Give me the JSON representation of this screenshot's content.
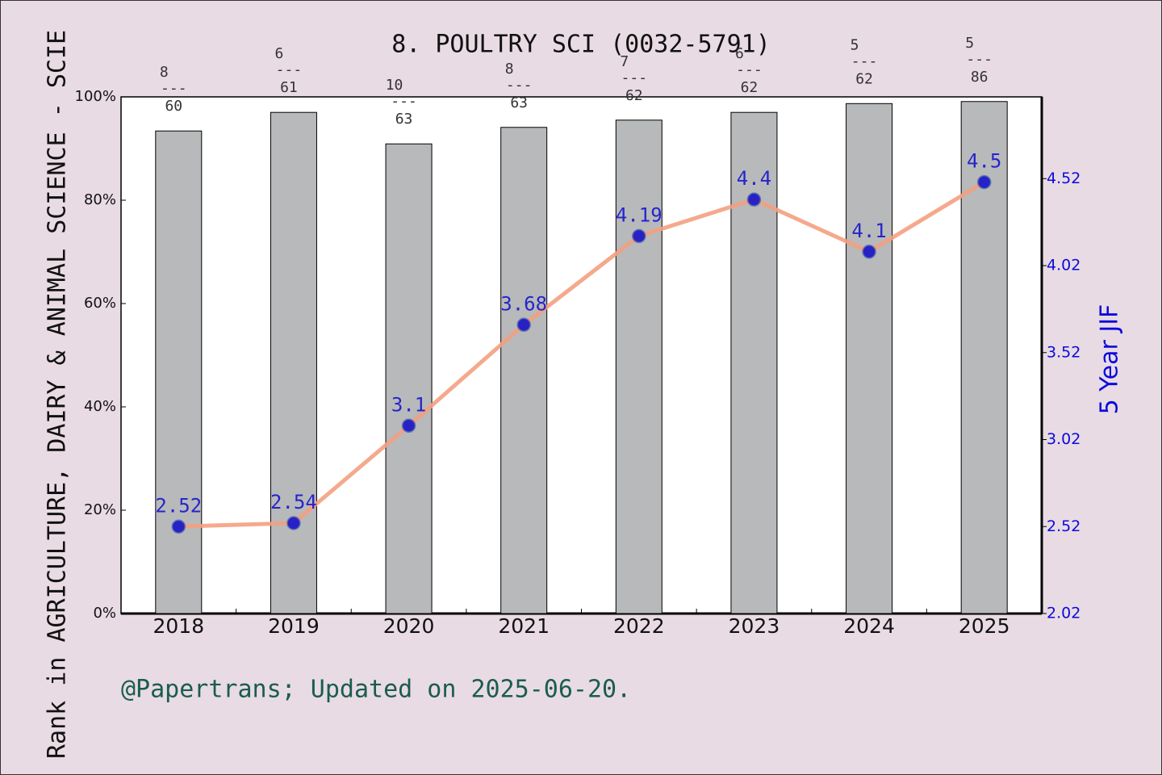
{
  "chart_data": {
    "type": "bar_line",
    "title": "8. POULTRY SCI (0032-5791)",
    "y_label": "Rank in AGRICULTURE, DAIRY & ANIMAL SCIENCE - SCIE",
    "y2_label": "5 Year JIF",
    "footer": "@Papertrans; Updated on 2025-06-20.",
    "categories": [
      "2018",
      "2019",
      "2020",
      "2021",
      "2022",
      "2023",
      "2024",
      "2025"
    ],
    "series": [
      {
        "type": "bar",
        "color": "#b8b9bb",
        "values": [
          93.4,
          97.0,
          90.9,
          94.1,
          95.5,
          97.0,
          98.7,
          99.1
        ]
      },
      {
        "type": "line",
        "axis": "y2",
        "color": "#f4a080",
        "marker_color": "#0a0acc",
        "values": [
          2.52,
          2.54,
          3.1,
          3.68,
          4.19,
          4.4,
          4.1,
          4.5
        ]
      }
    ],
    "rank_separator": "---",
    "ranks": [
      [
        "8",
        "60"
      ],
      [
        "6",
        "61"
      ],
      [
        "10",
        "63"
      ],
      [
        "8",
        "63"
      ],
      [
        "7",
        "62"
      ],
      [
        "6",
        "62"
      ],
      [
        "5",
        "62"
      ],
      [
        "5",
        "86"
      ]
    ],
    "ylim": [
      0,
      100
    ],
    "yticks": [
      {
        "value": 0,
        "label": "0%"
      },
      {
        "value": 20,
        "label": "20%"
      },
      {
        "value": 40,
        "label": "40%"
      },
      {
        "value": 60,
        "label": "60%"
      },
      {
        "value": 80,
        "label": "80%"
      },
      {
        "value": 100,
        "label": "100%"
      }
    ],
    "y2lim": [
      2.02,
      4.99
    ],
    "y2ticks": [
      2.02,
      2.52,
      3.02,
      3.52,
      4.02,
      4.52
    ]
  }
}
